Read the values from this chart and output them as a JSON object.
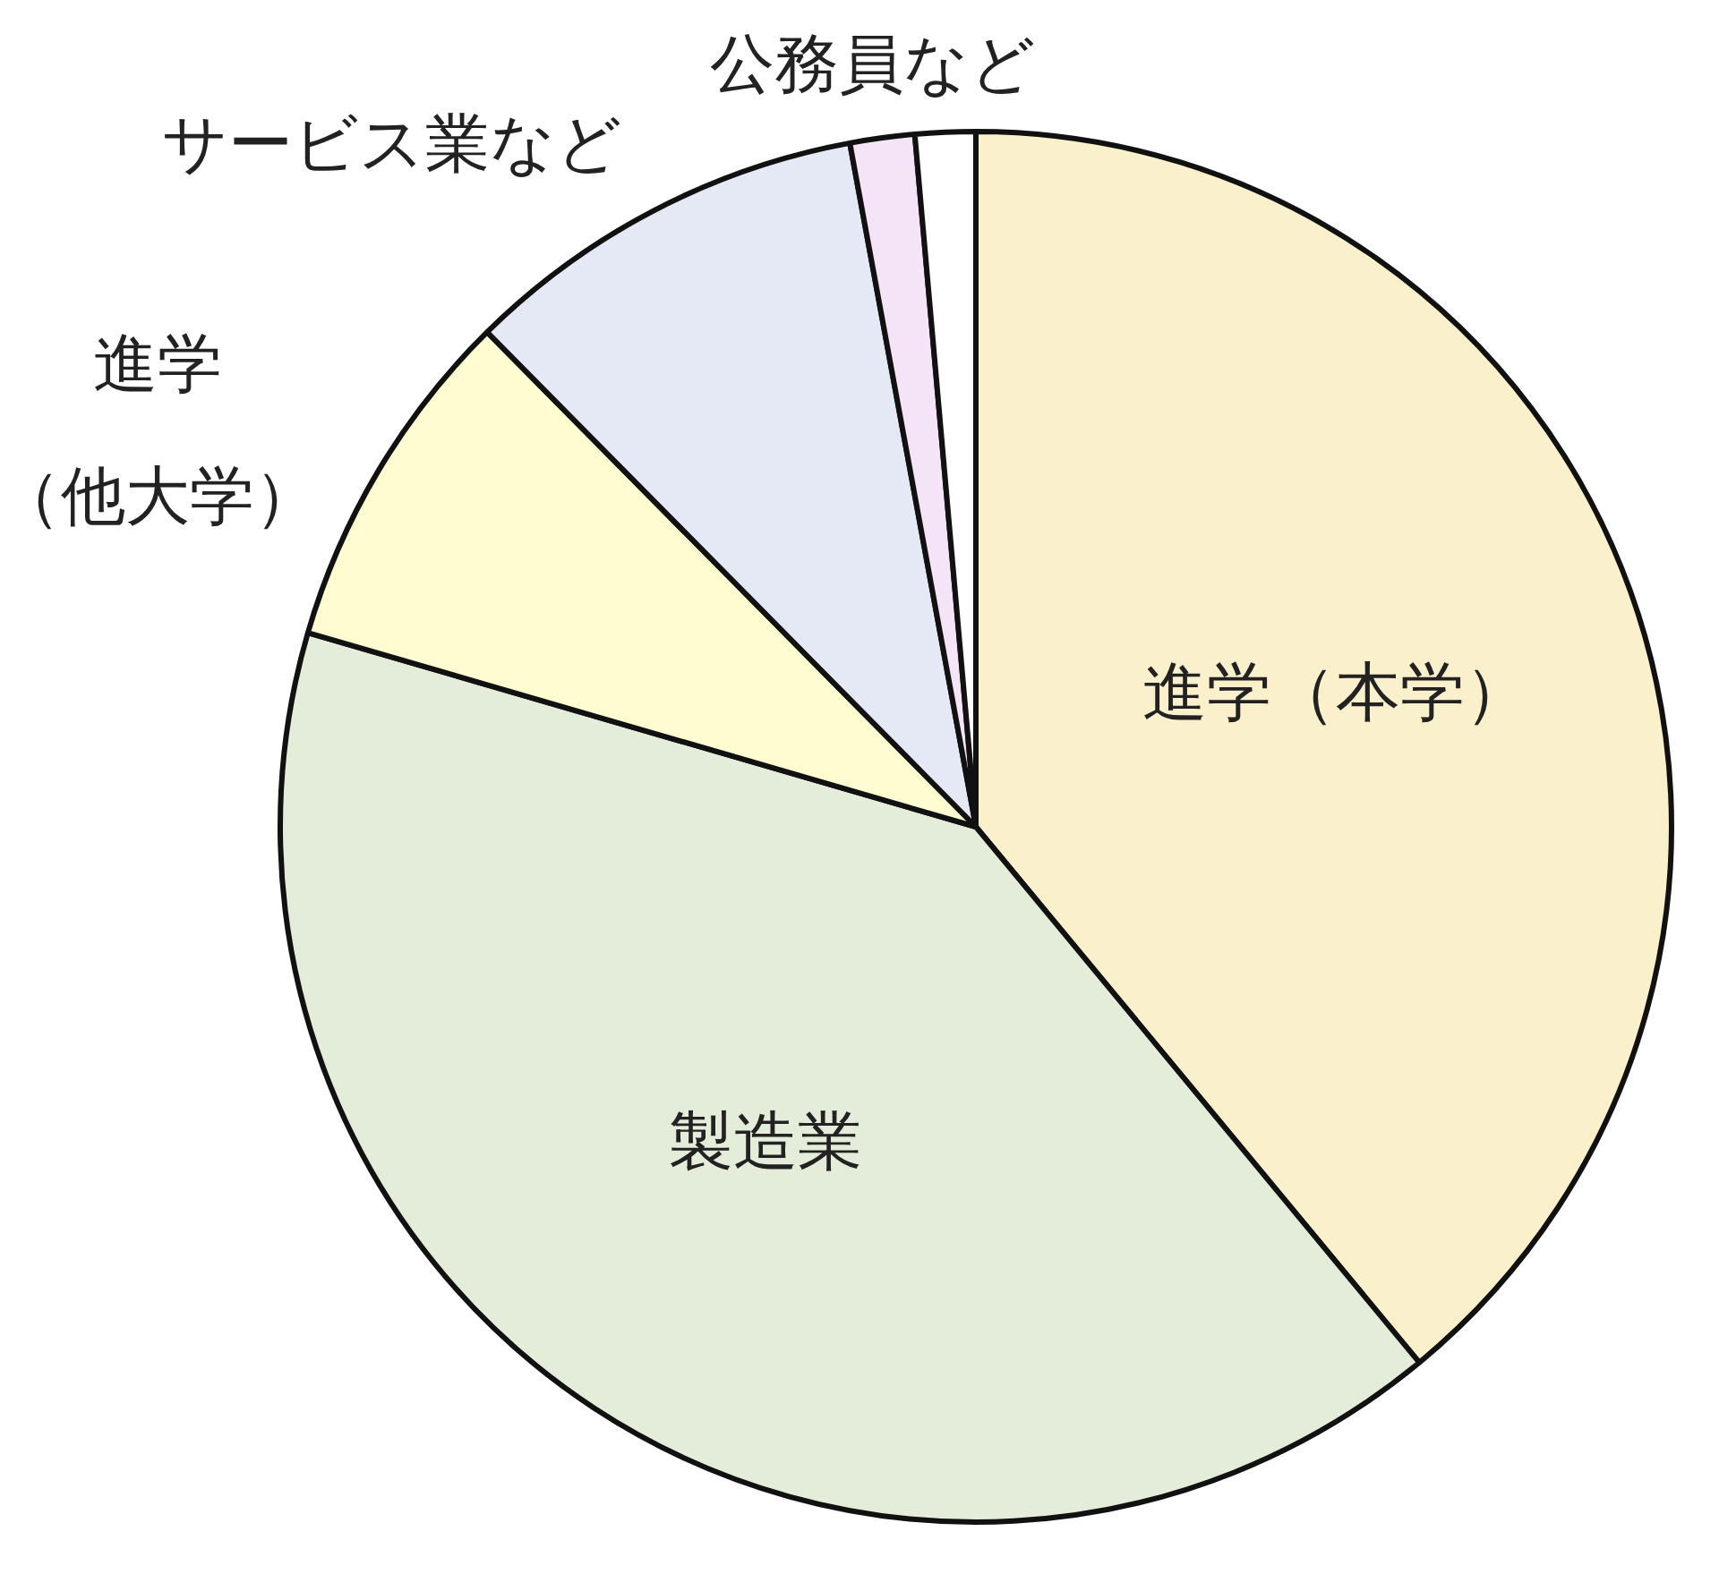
{
  "chart_data": {
    "type": "pie",
    "categories": [
      "進学（本学）",
      "製造業",
      "進学（他大学）",
      "サービス業など",
      "公務員など",
      null
    ],
    "values": [
      39.0,
      40.5,
      8.1,
      9.5,
      1.5,
      1.4
    ],
    "colors": [
      "#faf0cc",
      "#e4edd9",
      "#fefcd0",
      "#e4e9f5",
      "#f5e4f7",
      "#ffffff"
    ],
    "legend": false
  }
}
